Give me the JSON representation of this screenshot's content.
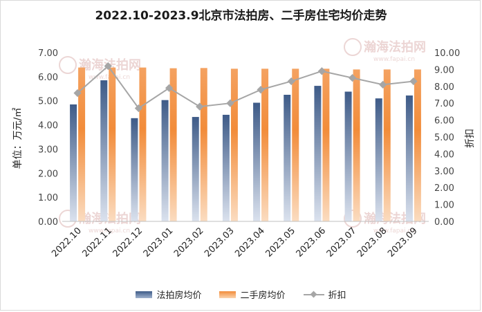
{
  "chart_data": {
    "type": "bar",
    "title": "2022.10-2023.9北京市法拍房、二手房住宅均价走势",
    "ylabel": "单位：万元/㎡",
    "y2label": "折扣",
    "ylim": [
      0,
      7
    ],
    "y2lim": [
      0,
      10
    ],
    "yticks": [
      "0.00",
      "1.00",
      "2.00",
      "3.00",
      "4.00",
      "5.00",
      "6.00",
      "7.00"
    ],
    "y2ticks": [
      "0.00",
      "1.00",
      "2.00",
      "3.00",
      "4.00",
      "5.00",
      "6.00",
      "7.00",
      "8.00",
      "9.00",
      "10.00"
    ],
    "categories": [
      "2022.10",
      "2022.11",
      "2022.12",
      "2023.01",
      "2023.02",
      "2023.03",
      "2023.04",
      "2023.05",
      "2023.06",
      "2023.07",
      "2023.08",
      "2023.09"
    ],
    "series": [
      {
        "name": "法拍房均价",
        "type": "bar",
        "axis": "left",
        "color": "#44628f",
        "values": [
          4.85,
          5.85,
          4.28,
          5.03,
          4.33,
          4.42,
          4.92,
          5.25,
          5.62,
          5.38,
          5.1,
          5.22
        ]
      },
      {
        "name": "二手房均价",
        "type": "bar",
        "axis": "left",
        "color": "#f28c3a",
        "values": [
          6.38,
          6.38,
          6.38,
          6.35,
          6.36,
          6.33,
          6.33,
          6.33,
          6.33,
          6.3,
          6.3,
          6.3
        ]
      },
      {
        "name": "折扣",
        "type": "line",
        "axis": "right",
        "color": "#a6a6a6",
        "values": [
          7.6,
          9.2,
          6.7,
          7.9,
          6.8,
          7.0,
          7.8,
          8.3,
          8.9,
          8.5,
          8.1,
          8.3
        ]
      }
    ],
    "legend": "bottom",
    "grid": false
  },
  "watermark": {
    "text": "瀚海法拍网",
    "url": "www.fapai.cn"
  }
}
